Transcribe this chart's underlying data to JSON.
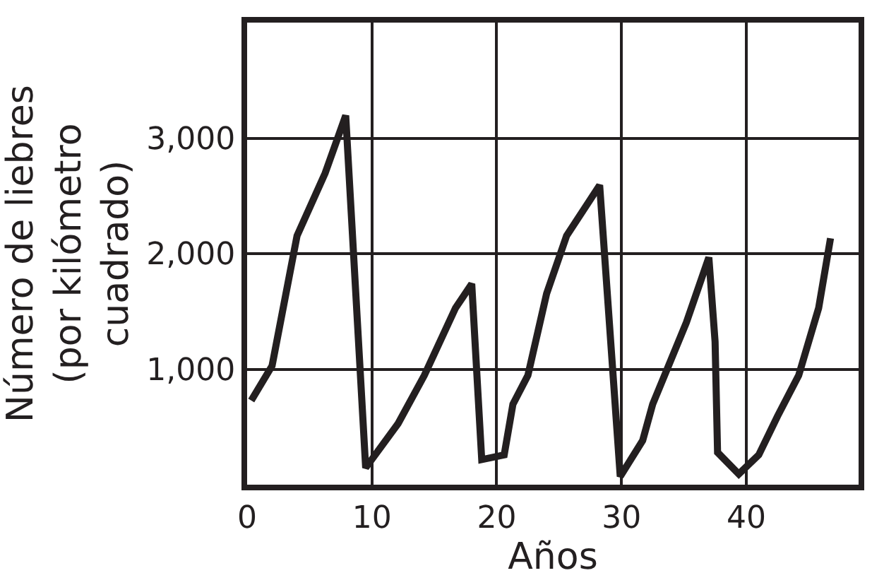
{
  "chart_data": {
    "type": "line",
    "xlabel": "Años",
    "ylabel": "Número de liebres\n(por kilómetro\ncuadrado)",
    "x": [
      0.33,
      2.0,
      4.0,
      6.25,
      7.9,
      9.5,
      12.1,
      14.2,
      16.7,
      18.0,
      18.8,
      20.6,
      21.3,
      22.5,
      24.0,
      25.6,
      28.25,
      29.9,
      31.7,
      32.5,
      35.2,
      37.0,
      37.5,
      37.7,
      39.4,
      41.0,
      42.5,
      44.2,
      45.8,
      46.75
    ],
    "series": [
      {
        "color": "#231f20",
        "values": [
          729,
          1029,
          2154,
          2696,
          3196,
          146,
          529,
          946,
          1529,
          1738,
          217,
          258,
          696,
          946,
          1654,
          2154,
          2592,
          71,
          383,
          696,
          1404,
          1967,
          1238,
          279,
          92,
          258,
          592,
          946,
          1529,
          2133
        ]
      }
    ],
    "xlim": [
      0,
      49
    ],
    "ylim": [
      0,
      4000
    ],
    "xticks": [
      0,
      10,
      20,
      30,
      40
    ],
    "yticks": [
      {
        "value": 1000,
        "label": "1,000"
      },
      {
        "value": 2000,
        "label": "2,000"
      },
      {
        "value": 3000,
        "label": "3,000"
      }
    ],
    "grid": true,
    "legend": false,
    "marker": "none",
    "line_style": "solid"
  }
}
